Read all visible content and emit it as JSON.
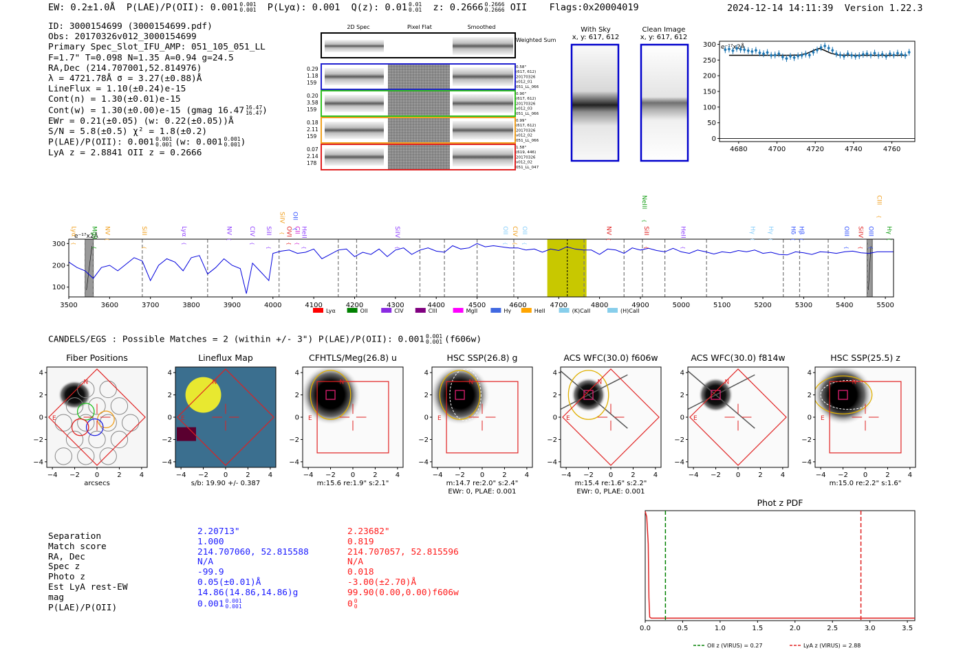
{
  "header": {
    "ew": "EW: 0.2±1.0Å",
    "plae": "P(LAE)/P(OII): 0.001",
    "plae_sup": "0.001",
    "plae_sub": "0.001",
    "plya": "P(Lyα): 0.001",
    "qz": "Q(z): 0.01",
    "qz_sup": "0.01",
    "qz_sub": "0.01",
    "z": "z: 0.2666",
    "z_sup": "0.2666",
    "z_sub": "0.2666",
    "z_line": "OII",
    "flags": "Flags:0x20004019",
    "timestamp": "2024-12-14 14:11:39",
    "version": "Version 1.22.3"
  },
  "info": {
    "id": "ID: 3000154699 (3000154699.pdf)",
    "obs": "Obs: 20170326v012_3000154699",
    "primary": "Primary Spec_Slot_IFU_AMP: 051_105_051_LL",
    "fit": "F=1.7\"  T=0.098  N=1.35  A=0.94  g=24.5",
    "radec": "RA,Dec (214.707001,52.814976)",
    "lambda": "λ = 4721.78Å  σ = 3.27(±0.88)Å",
    "lineflux": "LineFlux = 1.10(±0.24)e-15",
    "contn": "Cont(n) = 1.30(±0.01)e-15",
    "contw": "Cont(w) = 1.30(±0.00)e-15 (gmag 16.47",
    "contw_sup": "16.47",
    "contw_sub": "16.47",
    "ewr": "EWr = 0.21(±0.05) (w: 0.22(±0.05))Å",
    "sn": "S/N = 5.8(±0.5)  χ² = 1.8(±0.2)",
    "plae": "P(LAE)/P(OII): 0.001",
    "plae_sup": "0.001",
    "plae_sub": "0.001",
    "plae_w": "(w: 0.001",
    "plae_w_sup": "0.001",
    "plae_w_sub": "0.001",
    "lya_z": "LyA z = 2.8841   OII z = 0.2666"
  },
  "spec2d": {
    "headers": [
      "2D Spec",
      "Pixel Flat",
      "Smoothed"
    ],
    "weighted_label": "Weighted Sum",
    "rows": [
      {
        "color": "#2020d0",
        "left": [
          "0.29",
          "1.18",
          "159"
        ],
        "right": [
          "0.58\"",
          "(617, 612)",
          "20170326",
          "v012_01",
          "051_LL_066"
        ]
      },
      {
        "color": "#30c020",
        "left": [
          "0.20",
          "3.58",
          "159"
        ],
        "right": [
          "0.90\"",
          "(617, 612)",
          "20170326",
          "v012_03",
          "051_LL_066"
        ]
      },
      {
        "color": "#f0a020",
        "left": [
          "0.18",
          "2.11",
          "159"
        ],
        "right": [
          "0.99\"",
          "(617, 612)",
          "20170326",
          "v012_02",
          "051_LL_066"
        ]
      },
      {
        "color": "#e02020",
        "left": [
          "0.07",
          "2.14",
          "178"
        ],
        "right": [
          "1.58\"",
          "(619, 446)",
          "20170326",
          "v012_02",
          "051_LL_047"
        ]
      }
    ]
  },
  "cutouts": {
    "with_sky": "With Sky",
    "with_sky_xy": "x, y: 617, 612",
    "clean": "Clean Image",
    "clean_xy": "x, y: 617, 612"
  },
  "chart_data": [
    {
      "type": "line",
      "name": "zoom-spectrum",
      "ylabel": "e⁻¹⁷x2Å",
      "xlim": [
        4670,
        4772
      ],
      "ylim": [
        -10,
        310
      ],
      "xticks": [
        4680,
        4700,
        4720,
        4740,
        4760
      ],
      "yticks": [
        0,
        50,
        100,
        150,
        200,
        250,
        300
      ],
      "x": [
        4673,
        4675,
        4677,
        4679,
        4681,
        4683,
        4685,
        4687,
        4689,
        4691,
        4693,
        4695,
        4697,
        4699,
        4701,
        4703,
        4705,
        4707,
        4709,
        4711,
        4713,
        4715,
        4717,
        4719,
        4721,
        4723,
        4725,
        4727,
        4729,
        4731,
        4733,
        4735,
        4737,
        4739,
        4741,
        4743,
        4745,
        4747,
        4749,
        4751,
        4753,
        4755,
        4757,
        4759,
        4761,
        4763,
        4765,
        4767,
        4769
      ],
      "y": [
        283,
        285,
        280,
        287,
        284,
        283,
        280,
        277,
        281,
        273,
        270,
        274,
        265,
        266,
        270,
        260,
        255,
        262,
        258,
        263,
        265,
        269,
        266,
        275,
        282,
        290,
        295,
        288,
        281,
        270,
        266,
        262,
        270,
        265,
        262,
        264,
        268,
        270,
        266,
        272,
        265,
        268,
        262,
        270,
        266,
        272,
        268,
        265,
        275
      ],
      "fit_x": [
        4675,
        4690,
        4705,
        4712,
        4716,
        4720,
        4722,
        4724,
        4728,
        4732,
        4740,
        4768
      ],
      "fit_y": [
        265,
        265,
        265,
        266,
        272,
        283,
        287,
        283,
        272,
        266,
        265,
        265
      ]
    },
    {
      "type": "line",
      "name": "full-spectrum",
      "ylabel": "e⁻¹⁷x2Å",
      "xlim": [
        3500,
        5520
      ],
      "ylim": [
        55,
        320
      ],
      "xticks": [
        3500,
        3600,
        3700,
        3800,
        3900,
        4000,
        4100,
        4200,
        4300,
        4400,
        4500,
        4600,
        4700,
        4800,
        4900,
        5000,
        5100,
        5200,
        5300,
        5400,
        5500
      ],
      "yticks": [
        100,
        200,
        300
      ],
      "x": [
        3500,
        3520,
        3540,
        3560,
        3580,
        3600,
        3620,
        3640,
        3660,
        3680,
        3700,
        3720,
        3740,
        3760,
        3780,
        3800,
        3820,
        3840,
        3860,
        3880,
        3900,
        3920,
        3935,
        3950,
        3970,
        3990,
        4000,
        4020,
        4040,
        4060,
        4080,
        4100,
        4120,
        4140,
        4160,
        4180,
        4200,
        4220,
        4240,
        4260,
        4280,
        4300,
        4320,
        4340,
        4360,
        4380,
        4400,
        4420,
        4440,
        4460,
        4480,
        4500,
        4520,
        4540,
        4560,
        4580,
        4600,
        4620,
        4640,
        4660,
        4680,
        4700,
        4720,
        4740,
        4760,
        4780,
        4800,
        4820,
        4840,
        4860,
        4880,
        4900,
        4920,
        4940,
        4960,
        4980,
        5000,
        5020,
        5040,
        5060,
        5080,
        5100,
        5120,
        5140,
        5160,
        5180,
        5200,
        5220,
        5240,
        5260,
        5280,
        5300,
        5320,
        5340,
        5360,
        5380,
        5400,
        5420,
        5440,
        5460,
        5480,
        5500,
        5520
      ],
      "y": [
        215,
        190,
        175,
        140,
        190,
        200,
        175,
        205,
        235,
        220,
        130,
        200,
        230,
        215,
        175,
        235,
        245,
        160,
        190,
        230,
        200,
        185,
        70,
        210,
        170,
        130,
        255,
        265,
        270,
        255,
        260,
        275,
        230,
        250,
        270,
        275,
        240,
        260,
        250,
        275,
        240,
        270,
        280,
        250,
        270,
        280,
        265,
        260,
        290,
        275,
        280,
        300,
        285,
        290,
        285,
        280,
        280,
        270,
        275,
        260,
        275,
        268,
        285,
        275,
        270,
        270,
        250,
        275,
        270,
        255,
        280,
        270,
        278,
        268,
        262,
        278,
        262,
        255,
        270,
        262,
        252,
        262,
        258,
        268,
        262,
        270,
        255,
        260,
        250,
        248,
        262,
        258,
        250,
        262,
        260,
        255,
        262,
        265,
        258,
        255,
        262,
        262,
        262
      ],
      "line_labels": [
        {
          "text": "Lyα",
          "wl": 3508,
          "row": 3,
          "color": "#f0a020"
        },
        {
          "text": "MgII",
          "wl": 3558,
          "row": 3,
          "color": "#18a018"
        },
        {
          "text": "NV",
          "wl": 3590,
          "row": 3,
          "color": "#f0a020"
        },
        {
          "text": "SiII",
          "wl": 3680,
          "row": 3,
          "color": "#f0a020"
        },
        {
          "text": "Lyα",
          "wl": 3778,
          "row": 3,
          "color": "#9040ff"
        },
        {
          "text": "NV",
          "wl": 3888,
          "row": 3,
          "color": "#9040ff"
        },
        {
          "text": "CIV",
          "wl": 3945,
          "row": 3,
          "color": "#9040ff"
        },
        {
          "text": "SiII",
          "wl": 3985,
          "row": 3,
          "color": "#9040ff"
        },
        {
          "text": "CII",
          "wl": 4055,
          "row": 3,
          "color": "#d020d0"
        },
        {
          "text": "SiIV",
          "wl": 4018,
          "row": 1,
          "color": "#f0a020"
        },
        {
          "text": "OII",
          "wl": 4050,
          "row": 1,
          "color": "#3050ff"
        },
        {
          "text": "OVI",
          "wl": 4035,
          "row": 3,
          "color": "#e02020"
        },
        {
          "text": "HeII",
          "wl": 4072,
          "row": 3,
          "color": "#9040ff"
        },
        {
          "text": "SiIV",
          "wl": 4300,
          "row": 3,
          "color": "#9040ff"
        },
        {
          "text": "OII",
          "wl": 4565,
          "row": 3,
          "color": "#87cefa"
        },
        {
          "text": "CIV",
          "wl": 4588,
          "row": 3,
          "color": "#f0a020"
        },
        {
          "text": "OII",
          "wl": 4612,
          "row": 3,
          "color": "#87cefa"
        },
        {
          "text": "NV",
          "wl": 4818,
          "row": 3,
          "color": "#e02020"
        },
        {
          "text": "NeIII",
          "wl": 4905,
          "row": 0,
          "color": "#18a018"
        },
        {
          "text": "SiII",
          "wl": 4910,
          "row": 3,
          "color": "#e02020"
        },
        {
          "text": "HeII",
          "wl": 5000,
          "row": 3,
          "color": "#9040ff"
        },
        {
          "text": "Hγ",
          "wl": 5170,
          "row": 3,
          "color": "#87cefa"
        },
        {
          "text": "Hγ",
          "wl": 5215,
          "row": 3,
          "color": "#87cefa"
        },
        {
          "text": "Hδ",
          "wl": 5270,
          "row": 3,
          "color": "#3050ff"
        },
        {
          "text": "Hβ",
          "wl": 5290,
          "row": 3,
          "color": "#3050ff"
        },
        {
          "text": "OIII",
          "wl": 5400,
          "row": 3,
          "color": "#3050ff"
        },
        {
          "text": "SiIV",
          "wl": 5435,
          "row": 3,
          "color": "#e02020"
        },
        {
          "text": "OIII",
          "wl": 5460,
          "row": 3,
          "color": "#3050ff"
        },
        {
          "text": "CIII",
          "wl": 5480,
          "row": 0,
          "color": "#f0a020"
        },
        {
          "text": "Hγ",
          "wl": 5505,
          "row": 3,
          "color": "#18a018"
        }
      ],
      "legend": [
        {
          "label": "Lyα",
          "color": "#ff0000"
        },
        {
          "label": "OII",
          "color": "#008000"
        },
        {
          "label": "CIV",
          "color": "#8a2be2"
        },
        {
          "label": "CIII",
          "color": "#800080"
        },
        {
          "label": "MgII",
          "color": "#ff00ff"
        },
        {
          "label": "Hγ",
          "color": "#4169e1"
        },
        {
          "label": "HeII",
          "color": "#ffa500"
        },
        {
          "label": "(K)CaII",
          "color": "#87ceeb"
        },
        {
          "label": "(H)CaII",
          "color": "#87ceeb"
        }
      ]
    },
    {
      "type": "line",
      "name": "photz-pdf",
      "title": "Phot z PDF",
      "xlim": [
        0,
        3.6
      ],
      "xticks": [
        0.0,
        0.5,
        1.0,
        1.5,
        2.0,
        2.5,
        3.0,
        3.5
      ],
      "x": [
        0.0,
        0.02,
        0.04,
        0.05,
        0.06,
        0.08,
        0.2,
        1.0,
        2.0,
        3.0,
        3.6
      ],
      "y": [
        1.0,
        0.95,
        0.7,
        0.2,
        0.02,
        0.01,
        0.01,
        0.01,
        0.01,
        0.01,
        0.01
      ],
      "vlines": [
        {
          "x": 0.27,
          "color": "#008000",
          "label": "OII z (VIRUS) = 0.27"
        },
        {
          "x": 2.88,
          "color": "#e02020",
          "label": "LyA z (VIRUS) = 2.88"
        }
      ]
    }
  ],
  "catalog": {
    "summary": "CANDELS/EGS : Possible Matches = 2 (within +/- 3\")  P(LAE)/P(OII): 0.001",
    "summary_sup": "0.001",
    "summary_sub": "0.001",
    "summary_filter": "(f606w)"
  },
  "imaging_panels": [
    {
      "title": "Fiber Positions",
      "caption1": "arcsecs",
      "caption2": ""
    },
    {
      "title": "Lineflux Map",
      "caption1": "s/b: 19.90 +/- 0.387",
      "caption2": ""
    },
    {
      "title": "CFHTLS/Meg(26.8) u",
      "caption1": "m:15.6  re:1.9\"  s:2.1\"",
      "caption2": ""
    },
    {
      "title": "HSC SSP(26.8) g",
      "caption1": "m:14.7  re:2.0\"  s:2.4\"",
      "caption2": "EWr: 0, PLAE: 0.001"
    },
    {
      "title": "ACS WFC(30.0) f606w",
      "caption1": "m:15.4  re:1.6\"  s:2.2\"",
      "caption2": "EWr: 0, PLAE: 0.001"
    },
    {
      "title": "ACS WFC(30.0) f814w",
      "caption1": "",
      "caption2": ""
    },
    {
      "title": "HSC SSP(25.5) z",
      "caption1": "m:15.0  re:2.2\"  s:1.6\"",
      "caption2": ""
    }
  ],
  "panel_ticks": {
    "x": [
      "−4",
      "−2",
      "0",
      "2",
      "4"
    ],
    "y": [
      "4",
      "2",
      "0",
      "−2",
      "−4"
    ]
  },
  "compass": {
    "n": "N",
    "e": "E"
  },
  "match_table": {
    "labels": [
      "Separation",
      "Match score",
      "RA, Dec",
      "Spec z",
      "Photo z",
      "Est LyA rest-EW",
      "mag",
      "P(LAE)/P(OII)"
    ],
    "blue": [
      "2.20713\"",
      "1.000",
      "214.707060, 52.815588",
      "N/A",
      "-99.9",
      "0.05(±0.01)Å",
      "14.86(14.86,14.86)g",
      "0.001"
    ],
    "blue_sup": "0.001",
    "blue_sub": "0.001",
    "red": [
      "2.23682\"",
      "0.819",
      "214.707057, 52.815596",
      "N/A",
      "0.018",
      "-3.00(±2.70)Å",
      "99.90(0.00,0.00)f606w",
      "0"
    ],
    "red_sup": "0",
    "red_sub": "0"
  }
}
